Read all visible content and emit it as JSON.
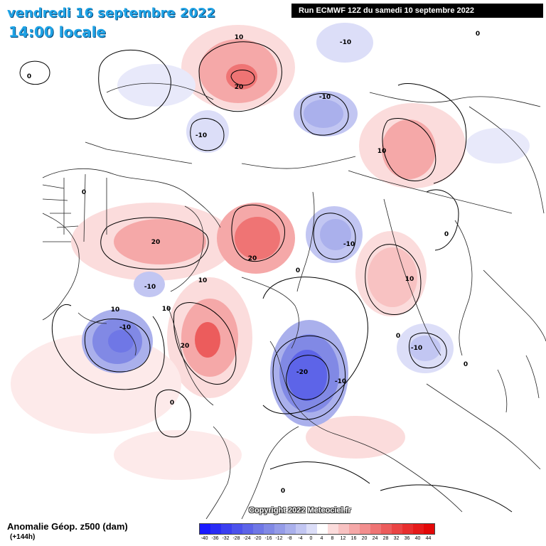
{
  "header": {
    "date": "vendredi 16 septembre 2022",
    "time": "14:00 locale",
    "run": "Run ECMWF 12Z du samedi 10 septembre 2022"
  },
  "map": {
    "copyright": "Copyright 2022 Meteociel.fr",
    "contour_labels": [
      "0",
      "-10",
      "10",
      "20",
      "-20"
    ]
  },
  "legend": {
    "field": "Anomalie Géop. z500 (dam)",
    "lead": "(+144h)",
    "ticks": [
      "-40",
      "-36",
      "-32",
      "-28",
      "-24",
      "-20",
      "-16",
      "-12",
      "-8",
      "-4",
      "0",
      "4",
      "8",
      "12",
      "16",
      "20",
      "24",
      "28",
      "32",
      "36",
      "40",
      "44"
    ],
    "colors": [
      "#1a1aff",
      "#2a2cf5",
      "#3b3ff0",
      "#4c52ec",
      "#5d64e8",
      "#6f77e6",
      "#8189e5",
      "#959ce8",
      "#aab0ec",
      "#c2c6f2",
      "#dcdef8",
      "#ffffff",
      "#fbdcdc",
      "#f8c2c2",
      "#f5a8a8",
      "#f28e8e",
      "#ef7474",
      "#ec5c5c",
      "#ea4444",
      "#e82e2e",
      "#e61a1a",
      "#e30808"
    ]
  },
  "colors": {
    "positive_anomaly": "#f28e8e",
    "negative_anomaly": "#6f77e6",
    "title": "#1fa3e6"
  }
}
